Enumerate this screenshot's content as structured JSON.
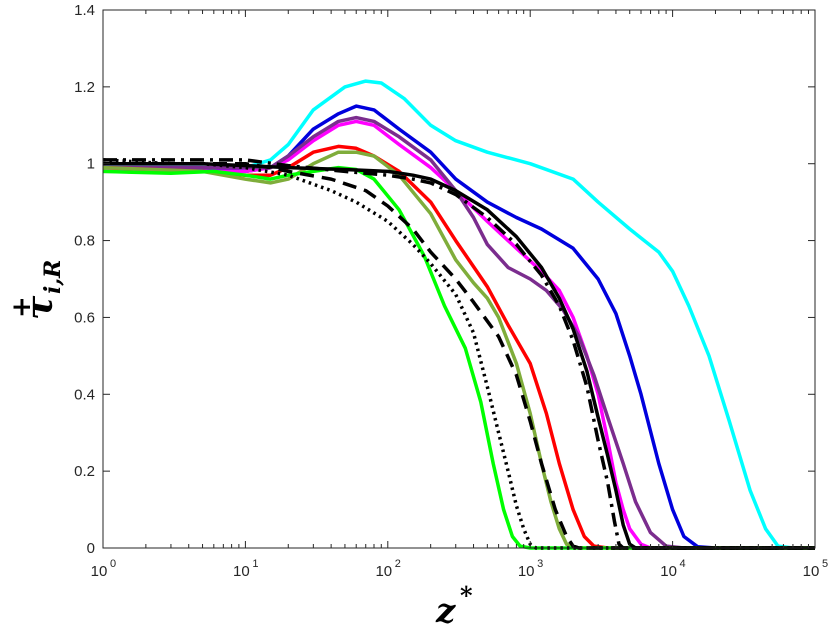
{
  "chart_data": {
    "type": "line",
    "x_scale": "log",
    "xlim": [
      1,
      100000
    ],
    "ylim": [
      0,
      1.4
    ],
    "grid": false,
    "xlabel": {
      "main": "z",
      "sup": "*"
    },
    "ylabel": {
      "main": "τ",
      "sup": "+",
      "sub": "i,R"
    },
    "xticks": [
      {
        "value": 1,
        "base": "10",
        "exp": "0"
      },
      {
        "value": 10,
        "base": "10",
        "exp": "1"
      },
      {
        "value": 100,
        "base": "10",
        "exp": "2"
      },
      {
        "value": 1000,
        "base": "10",
        "exp": "3"
      },
      {
        "value": 10000,
        "base": "10",
        "exp": "4"
      },
      {
        "value": 100000,
        "base": "10",
        "exp": "5"
      }
    ],
    "yticks": [
      {
        "value": 0,
        "label": "0"
      },
      {
        "value": 0.2,
        "label": "0.2"
      },
      {
        "value": 0.4,
        "label": "0.4"
      },
      {
        "value": 0.6,
        "label": "0.6"
      },
      {
        "value": 0.8,
        "label": "0.8"
      },
      {
        "value": 1.0,
        "label": "1"
      },
      {
        "value": 1.2,
        "label": "1.2"
      },
      {
        "value": 1.4,
        "label": "1.4"
      }
    ],
    "series": [
      {
        "color": "#00ffff",
        "style": "solid",
        "points": [
          [
            1,
            0.99
          ],
          [
            5,
            0.99
          ],
          [
            10,
            0.99
          ],
          [
            15,
            1.01
          ],
          [
            20,
            1.05
          ],
          [
            30,
            1.14
          ],
          [
            50,
            1.2
          ],
          [
            70,
            1.215
          ],
          [
            90,
            1.21
          ],
          [
            130,
            1.17
          ],
          [
            200,
            1.1
          ],
          [
            300,
            1.06
          ],
          [
            500,
            1.03
          ],
          [
            1000,
            1.0
          ],
          [
            2000,
            0.96
          ],
          [
            3000,
            0.9
          ],
          [
            5000,
            0.83
          ],
          [
            8000,
            0.77
          ],
          [
            10000,
            0.72
          ],
          [
            13000,
            0.63
          ],
          [
            18000,
            0.5
          ],
          [
            25000,
            0.33
          ],
          [
            35000,
            0.15
          ],
          [
            45000,
            0.05
          ],
          [
            55000,
            0.005
          ],
          [
            70000,
            0.0
          ],
          [
            100000,
            0.0
          ]
        ]
      },
      {
        "color": "#0000dd",
        "style": "solid",
        "points": [
          [
            1,
            0.99
          ],
          [
            5,
            0.99
          ],
          [
            10,
            0.98
          ],
          [
            15,
            0.99
          ],
          [
            20,
            1.02
          ],
          [
            30,
            1.09
          ],
          [
            45,
            1.13
          ],
          [
            60,
            1.15
          ],
          [
            80,
            1.14
          ],
          [
            120,
            1.09
          ],
          [
            200,
            1.03
          ],
          [
            300,
            0.96
          ],
          [
            500,
            0.9
          ],
          [
            800,
            0.86
          ],
          [
            1200,
            0.83
          ],
          [
            2000,
            0.78
          ],
          [
            3000,
            0.7
          ],
          [
            4000,
            0.61
          ],
          [
            5000,
            0.5
          ],
          [
            6000,
            0.4
          ],
          [
            8000,
            0.22
          ],
          [
            10000,
            0.1
          ],
          [
            12000,
            0.03
          ],
          [
            15000,
            0.003
          ],
          [
            20000,
            0.0
          ],
          [
            100000,
            0.0
          ]
        ]
      },
      {
        "color": "#ff00ff",
        "style": "solid",
        "points": [
          [
            1,
            0.98
          ],
          [
            5,
            0.98
          ],
          [
            10,
            0.98
          ],
          [
            15,
            0.99
          ],
          [
            20,
            1.01
          ],
          [
            30,
            1.06
          ],
          [
            45,
            1.1
          ],
          [
            60,
            1.11
          ],
          [
            80,
            1.1
          ],
          [
            120,
            1.05
          ],
          [
            200,
            0.99
          ],
          [
            300,
            0.93
          ],
          [
            500,
            0.85
          ],
          [
            800,
            0.78
          ],
          [
            1200,
            0.72
          ],
          [
            1600,
            0.67
          ],
          [
            2000,
            0.6
          ],
          [
            2500,
            0.5
          ],
          [
            3000,
            0.4
          ],
          [
            3500,
            0.28
          ],
          [
            4000,
            0.17
          ],
          [
            4500,
            0.1
          ],
          [
            5000,
            0.05
          ],
          [
            6000,
            0.01
          ],
          [
            7000,
            0.0
          ],
          [
            100000,
            0.0
          ]
        ]
      },
      {
        "color": "#7b2d8e",
        "style": "solid",
        "points": [
          [
            1,
            0.99
          ],
          [
            5,
            0.99
          ],
          [
            10,
            0.99
          ],
          [
            15,
            0.99
          ],
          [
            20,
            1.02
          ],
          [
            30,
            1.07
          ],
          [
            45,
            1.11
          ],
          [
            60,
            1.12
          ],
          [
            80,
            1.11
          ],
          [
            120,
            1.07
          ],
          [
            200,
            1.01
          ],
          [
            300,
            0.93
          ],
          [
            400,
            0.86
          ],
          [
            500,
            0.79
          ],
          [
            700,
            0.73
          ],
          [
            1000,
            0.7
          ],
          [
            1300,
            0.67
          ],
          [
            1700,
            0.62
          ],
          [
            2200,
            0.55
          ],
          [
            2800,
            0.45
          ],
          [
            3500,
            0.34
          ],
          [
            4500,
            0.22
          ],
          [
            5500,
            0.12
          ],
          [
            7000,
            0.04
          ],
          [
            9000,
            0.005
          ],
          [
            12000,
            0.0
          ],
          [
            100000,
            0.0
          ]
        ]
      },
      {
        "color": "#ff0000",
        "style": "solid",
        "points": [
          [
            1,
            0.99
          ],
          [
            5,
            0.98
          ],
          [
            10,
            0.97
          ],
          [
            15,
            0.97
          ],
          [
            20,
            0.99
          ],
          [
            30,
            1.03
          ],
          [
            45,
            1.045
          ],
          [
            60,
            1.04
          ],
          [
            80,
            1.02
          ],
          [
            120,
            0.98
          ],
          [
            200,
            0.9
          ],
          [
            300,
            0.8
          ],
          [
            500,
            0.68
          ],
          [
            700,
            0.58
          ],
          [
            1000,
            0.48
          ],
          [
            1300,
            0.35
          ],
          [
            1600,
            0.22
          ],
          [
            2000,
            0.1
          ],
          [
            2400,
            0.03
          ],
          [
            2800,
            0.005
          ],
          [
            3500,
            0.0
          ],
          [
            100000,
            0.0
          ]
        ]
      },
      {
        "color": "#7fad3b",
        "style": "solid",
        "points": [
          [
            1,
            0.99
          ],
          [
            5,
            0.98
          ],
          [
            10,
            0.96
          ],
          [
            15,
            0.95
          ],
          [
            20,
            0.96
          ],
          [
            30,
            1.0
          ],
          [
            45,
            1.03
          ],
          [
            60,
            1.03
          ],
          [
            80,
            1.02
          ],
          [
            120,
            0.97
          ],
          [
            200,
            0.87
          ],
          [
            300,
            0.75
          ],
          [
            400,
            0.69
          ],
          [
            500,
            0.65
          ],
          [
            600,
            0.6
          ],
          [
            800,
            0.48
          ],
          [
            1000,
            0.35
          ],
          [
            1200,
            0.22
          ],
          [
            1400,
            0.12
          ],
          [
            1600,
            0.05
          ],
          [
            1800,
            0.01
          ],
          [
            2200,
            0.0
          ],
          [
            100000,
            0.0
          ]
        ]
      },
      {
        "color": "#00ff00",
        "style": "solid",
        "points": [
          [
            1,
            0.98
          ],
          [
            3,
            0.975
          ],
          [
            6,
            0.98
          ],
          [
            10,
            0.97
          ],
          [
            15,
            0.96
          ],
          [
            20,
            0.97
          ],
          [
            30,
            0.98
          ],
          [
            45,
            0.99
          ],
          [
            60,
            0.985
          ],
          [
            80,
            0.96
          ],
          [
            120,
            0.88
          ],
          [
            180,
            0.76
          ],
          [
            250,
            0.63
          ],
          [
            350,
            0.52
          ],
          [
            450,
            0.38
          ],
          [
            550,
            0.22
          ],
          [
            650,
            0.1
          ],
          [
            750,
            0.03
          ],
          [
            850,
            0.005
          ],
          [
            1000,
            0.0
          ],
          [
            100000,
            0.0
          ]
        ]
      },
      {
        "color": "#000000",
        "style": "solid",
        "points": [
          [
            1,
            1.0
          ],
          [
            5,
            1.0
          ],
          [
            10,
            0.995
          ],
          [
            20,
            0.99
          ],
          [
            50,
            0.985
          ],
          [
            100,
            0.98
          ],
          [
            150,
            0.97
          ],
          [
            200,
            0.96
          ],
          [
            300,
            0.93
          ],
          [
            500,
            0.88
          ],
          [
            800,
            0.81
          ],
          [
            1200,
            0.73
          ],
          [
            1600,
            0.65
          ],
          [
            2000,
            0.57
          ],
          [
            2500,
            0.46
          ],
          [
            3000,
            0.34
          ],
          [
            3500,
            0.24
          ],
          [
            4000,
            0.15
          ],
          [
            4500,
            0.06
          ],
          [
            5000,
            0.01
          ],
          [
            5500,
            0.0
          ],
          [
            100000,
            0.0
          ]
        ]
      },
      {
        "color": "#000000",
        "style": "dashdot",
        "points": [
          [
            1,
            1.01
          ],
          [
            5,
            1.01
          ],
          [
            10,
            1.01
          ],
          [
            20,
            0.995
          ],
          [
            50,
            0.98
          ],
          [
            100,
            0.97
          ],
          [
            150,
            0.96
          ],
          [
            200,
            0.95
          ],
          [
            300,
            0.92
          ],
          [
            500,
            0.86
          ],
          [
            800,
            0.79
          ],
          [
            1200,
            0.71
          ],
          [
            1600,
            0.63
          ],
          [
            2000,
            0.54
          ],
          [
            2500,
            0.42
          ],
          [
            3000,
            0.28
          ],
          [
            3500,
            0.17
          ],
          [
            3900,
            0.07
          ],
          [
            4200,
            0.01
          ],
          [
            4500,
            0.0
          ],
          [
            100000,
            0.0
          ]
        ]
      },
      {
        "color": "#000000",
        "style": "dashed",
        "points": [
          [
            1,
            1.0
          ],
          [
            5,
            1.0
          ],
          [
            10,
            1.0
          ],
          [
            15,
            0.99
          ],
          [
            20,
            0.98
          ],
          [
            40,
            0.96
          ],
          [
            70,
            0.93
          ],
          [
            100,
            0.89
          ],
          [
            150,
            0.83
          ],
          [
            200,
            0.77
          ],
          [
            300,
            0.7
          ],
          [
            400,
            0.64
          ],
          [
            600,
            0.55
          ],
          [
            800,
            0.45
          ],
          [
            1000,
            0.33
          ],
          [
            1200,
            0.22
          ],
          [
            1500,
            0.1
          ],
          [
            1800,
            0.03
          ],
          [
            2000,
            0.005
          ],
          [
            2200,
            0.0
          ],
          [
            100000,
            0.0
          ]
        ]
      },
      {
        "color": "#000000",
        "style": "dotted",
        "points": [
          [
            1,
            1.01
          ],
          [
            3,
            1.0
          ],
          [
            5,
            1.0
          ],
          [
            10,
            0.99
          ],
          [
            20,
            0.97
          ],
          [
            40,
            0.93
          ],
          [
            60,
            0.9
          ],
          [
            100,
            0.85
          ],
          [
            150,
            0.79
          ],
          [
            200,
            0.74
          ],
          [
            300,
            0.66
          ],
          [
            400,
            0.56
          ],
          [
            500,
            0.42
          ],
          [
            600,
            0.3
          ],
          [
            700,
            0.2
          ],
          [
            800,
            0.11
          ],
          [
            900,
            0.05
          ],
          [
            1000,
            0.01
          ],
          [
            1100,
            0.0
          ],
          [
            100000,
            0.0
          ]
        ]
      }
    ]
  }
}
